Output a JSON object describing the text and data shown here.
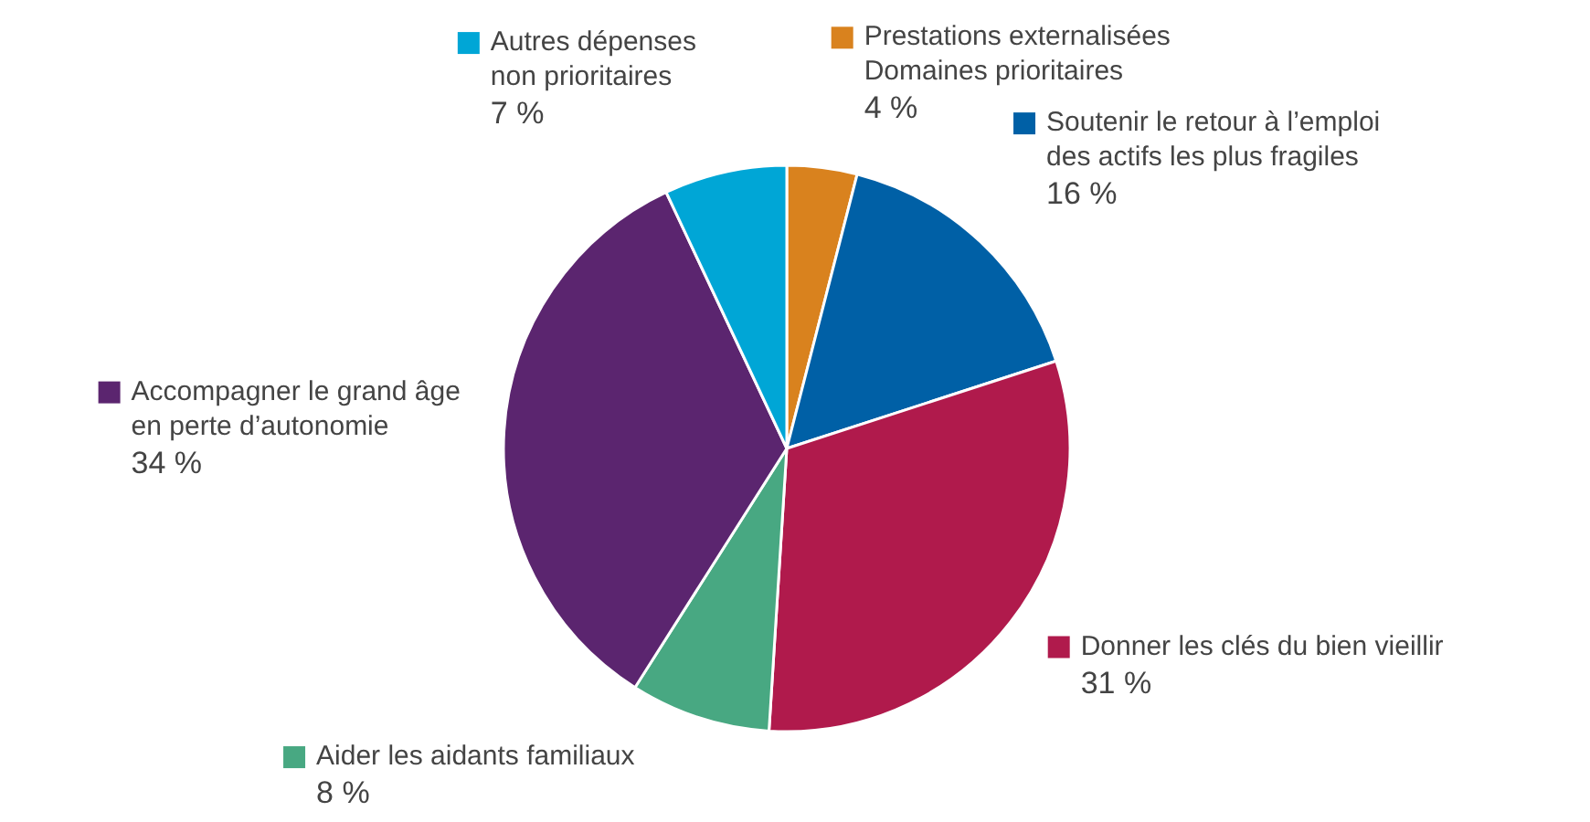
{
  "chart_data": {
    "type": "pie",
    "categories": [
      "Prestations externalisées\nDomaines prioritaires",
      "Soutenir le retour à l’emploi\ndes actifs les plus fragiles",
      "Donner les clés du bien vieillir",
      "Aider les aidants familiaux",
      "Accompagner le grand âge\nen perte d’autonomie",
      "Autres dépenses\nnon prioritaires"
    ],
    "values": [
      4,
      16,
      31,
      8,
      34,
      7
    ],
    "colors": [
      "#d9821e",
      "#0060a6",
      "#b01a4c",
      "#48a882",
      "#5b256f",
      "#00a6d6"
    ],
    "value_labels": [
      "4 %",
      "16 %",
      "31 %",
      "8 %",
      "34 %",
      "7 %"
    ],
    "legend": "top right"
  }
}
